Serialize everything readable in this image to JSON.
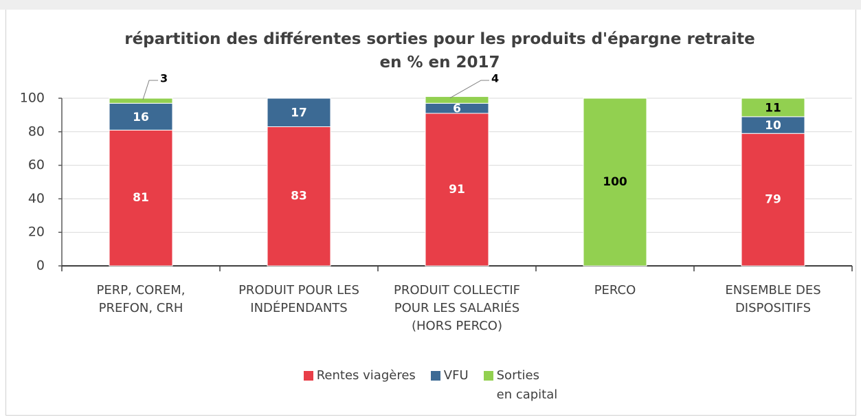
{
  "chart_data": {
    "type": "stacked_bar",
    "title": "répartition des différentes sorties pour les produits d'épargne retraite\nen % en 2017",
    "categories": [
      "PERP, COREM,\nPREFON, CRH",
      "PRODUIT POUR LES\nINDÉPENDANTS",
      "PRODUIT COLLECTIF\nPOUR LES SALARIÉS\n(HORS PERCO)",
      "PERCO",
      "ENSEMBLE DES\nDISPOSITIFS"
    ],
    "series": [
      {
        "name": "Rentes viagères",
        "color": "#e83e48",
        "label_color": "#ffffff",
        "values": [
          81,
          83,
          91,
          0,
          79
        ]
      },
      {
        "name": "VFU",
        "color": "#3c6a94",
        "label_color": "#ffffff",
        "values": [
          16,
          17,
          6,
          0,
          10
        ]
      },
      {
        "name": "Sorties\nen capital",
        "color": "#92d050",
        "label_color": "#000000",
        "values": [
          3,
          0,
          4,
          100,
          11
        ]
      }
    ],
    "ylim": [
      0,
      100
    ],
    "yticks": [
      0,
      20,
      40,
      60,
      80,
      100
    ],
    "grid": true
  }
}
